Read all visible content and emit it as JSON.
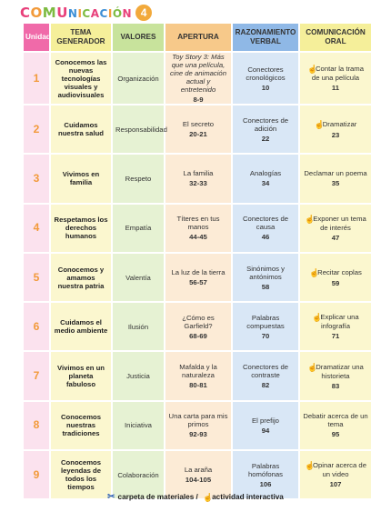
{
  "header": {
    "title_letters": [
      {
        "ch": "C",
        "color": "#e8407a"
      },
      {
        "ch": "O",
        "color": "#f29a3a"
      },
      {
        "ch": "M",
        "color": "#7dbb42"
      },
      {
        "ch": "U",
        "color": "#e8407a"
      },
      {
        "ch": "N",
        "color": "#3d8fd6"
      },
      {
        "ch": "I",
        "color": "#f29a3a"
      },
      {
        "ch": "C",
        "color": "#7dbb42"
      },
      {
        "ch": "A",
        "color": "#e8407a"
      },
      {
        "ch": "C",
        "color": "#3d8fd6"
      },
      {
        "ch": "I",
        "color": "#f29a3a"
      },
      {
        "ch": "Ó",
        "color": "#7dbb42"
      },
      {
        "ch": "N",
        "color": "#e8407a"
      }
    ],
    "number": "4"
  },
  "table": {
    "columns": [
      "Unidad",
      "TEMA GENERADOR",
      "VALORES",
      "APERTURA",
      "RAZONAMIENTO VERBAL",
      "COMUNICACIÓN ORAL"
    ],
    "rows": [
      {
        "unit": "1",
        "tema": "Conocemos las nuevas tecnologías visuales y audiovisuales",
        "valor": "Organización",
        "apertura": "Toy Story 3: Más que una película, cine de animación actual y entretenido",
        "apertura_pg": "8-9",
        "razon": "Conectores cronológicos",
        "razon_pg": "10",
        "oral": "Contar la trama de una película",
        "oral_pg": "11",
        "oral_icon": true
      },
      {
        "unit": "2",
        "tema": "Cuidamos nuestra salud",
        "valor": "Responsabilidad",
        "apertura": "El secreto",
        "apertura_pg": "20-21",
        "razon": "Conectores de adición",
        "razon_pg": "22",
        "oral": "Dramatizar",
        "oral_pg": "23",
        "oral_icon": true
      },
      {
        "unit": "3",
        "tema": "Vivimos en familia",
        "valor": "Respeto",
        "apertura": "La familia",
        "apertura_pg": "32-33",
        "razon": "Analogías",
        "razon_pg": "34",
        "oral": "Declamar un poema",
        "oral_pg": "35",
        "oral_icon": false
      },
      {
        "unit": "4",
        "tema": "Respetamos los derechos humanos",
        "valor": "Empatía",
        "apertura": "Títeres en tus manos",
        "apertura_pg": "44-45",
        "razon": "Conectores de causa",
        "razon_pg": "46",
        "oral": "Exponer un tema de interés",
        "oral_pg": "47",
        "oral_icon": true
      },
      {
        "unit": "5",
        "tema": "Conocemos y amamos nuestra patria",
        "valor": "Valentía",
        "apertura": "La luz de la tierra",
        "apertura_pg": "56-57",
        "razon": "Sinónimos y antónimos",
        "razon_pg": "58",
        "oral": "Recitar coplas",
        "oral_pg": "59",
        "oral_icon": true
      },
      {
        "unit": "6",
        "tema": "Cuidamos el medio ambiente",
        "valor": "Ilusión",
        "apertura": "¿Cómo es Garfield?",
        "apertura_pg": "68-69",
        "razon": "Palabras compuestas",
        "razon_pg": "70",
        "oral": "Explicar una infografía",
        "oral_pg": "71",
        "oral_icon": true
      },
      {
        "unit": "7",
        "tema": "Vivimos en un planeta fabuloso",
        "valor": "Justicia",
        "apertura": "Mafalda y la naturaleza",
        "apertura_pg": "80-81",
        "razon": "Conectores de contraste",
        "razon_pg": "82",
        "oral": "Dramatizar una historieta",
        "oral_pg": "83",
        "oral_icon": true
      },
      {
        "unit": "8",
        "tema": "Conocemos nuestras tradiciones",
        "valor": "Iniciativa",
        "apertura": "Una carta para mis primos",
        "apertura_pg": "92-93",
        "razon": "El prefijo",
        "razon_pg": "94",
        "oral": "Debatir acerca de un tema",
        "oral_pg": "95",
        "oral_icon": false
      },
      {
        "unit": "9",
        "tema": "Conocemos leyendas de todos los tiempos",
        "valor": "Colaboración",
        "apertura": "La araña",
        "apertura_pg": "104-105",
        "razon": "Palabras homófonas",
        "razon_pg": "106",
        "oral": "Opinar acerca de un video",
        "oral_pg": "107",
        "oral_icon": true
      }
    ]
  },
  "legend": {
    "materials": "carpeta de materiales /",
    "interactive": "actividad interactiva",
    "materials_icon": "scissors-icon",
    "interactive_icon": "hand-touch-icon"
  }
}
